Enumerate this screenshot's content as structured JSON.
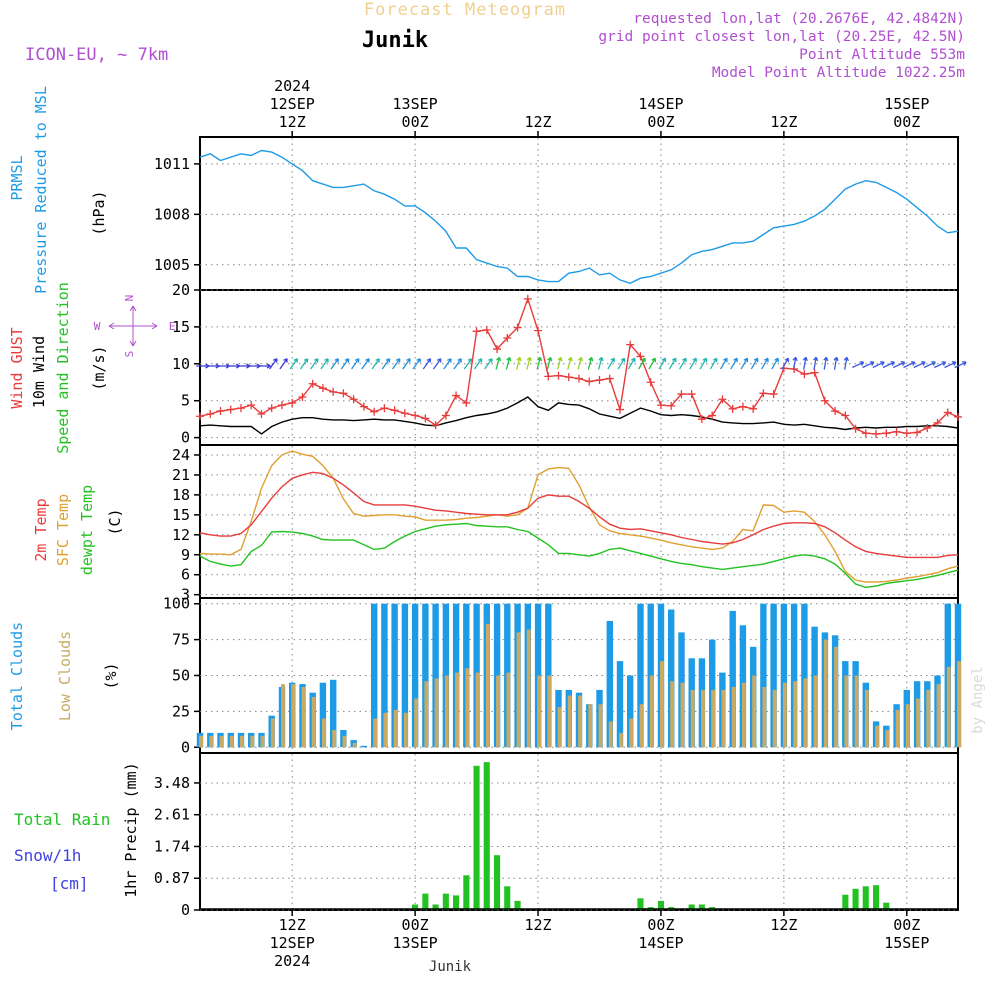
{
  "header": {
    "top_title": "Forecast Meteogram",
    "location": "Junik",
    "model": "ICON-EU, ~ 7km",
    "requested": "requested lon,lat (20.2676E, 42.4842N)",
    "grid_point": "grid point closest lon,lat (20.25E, 42.5N)",
    "point_altitude": "Point Altitude 553m",
    "model_altitude": "Model Point Altitude 1022.25m",
    "footer_location": "Junik",
    "watermark": "by Angel"
  },
  "colors": {
    "prmsl": "#1e9be6",
    "gust": "#e83c3c",
    "wind10": "#000000",
    "t2m": "#e83c3c",
    "sfc": "#e0a030",
    "dewpt": "#22c222",
    "total_clouds": "#1e9be6",
    "low_clouds": "#c8aa64",
    "rain": "#22c222",
    "snow": "#4040e0",
    "model": "#b04fd0"
  },
  "time_axis": {
    "start": "2024-09-12T03Z",
    "end": "2024-09-15T06Z",
    "step_hours": 1,
    "top_ticks": [
      {
        "hour": 9,
        "lines": [
          "2024",
          "12SEP",
          "12Z"
        ]
      },
      {
        "hour": 21,
        "lines": [
          "13SEP",
          "00Z"
        ]
      },
      {
        "hour": 33,
        "lines": [
          "12Z"
        ]
      },
      {
        "hour": 45,
        "lines": [
          "14SEP",
          "00Z"
        ]
      },
      {
        "hour": 57,
        "lines": [
          "12Z"
        ]
      },
      {
        "hour": 69,
        "lines": [
          "15SEP",
          "00Z"
        ]
      }
    ],
    "bottom_ticks": [
      {
        "hour": 9,
        "lines": [
          "12Z",
          "12SEP",
          "2024"
        ]
      },
      {
        "hour": 21,
        "lines": [
          "00Z",
          "13SEP"
        ]
      },
      {
        "hour": 33,
        "lines": [
          "12Z"
        ]
      },
      {
        "hour": 45,
        "lines": [
          "00Z",
          "14SEP"
        ]
      },
      {
        "hour": 57,
        "lines": [
          "12Z"
        ]
      },
      {
        "hour": 69,
        "lines": [
          "00Z",
          "15SEP"
        ]
      }
    ]
  },
  "chart_data": [
    {
      "type": "line",
      "panel": "pressure",
      "ylabel": [
        "PRMSL",
        "Pressure Reduced to MSL"
      ],
      "unit": "(hPa)",
      "yticks": [
        1005,
        1008,
        1011
      ],
      "ylim": [
        1003.5,
        1012.6
      ],
      "series": [
        {
          "name": "PRMSL",
          "values": [
            1011.4,
            1011.6,
            1011.2,
            1011.4,
            1011.6,
            1011.5,
            1011.8,
            1011.7,
            1011.4,
            1011.0,
            1010.6,
            1010.0,
            1009.8,
            1009.6,
            1009.6,
            1009.7,
            1009.8,
            1009.4,
            1009.2,
            1008.9,
            1008.5,
            1008.5,
            1008.1,
            1007.6,
            1007.0,
            1006.0,
            1006.0,
            1005.3,
            1005.1,
            1004.9,
            1004.8,
            1004.3,
            1004.3,
            1004.1,
            1004.0,
            1004.0,
            1004.5,
            1004.6,
            1004.8,
            1004.4,
            1004.5,
            1004.1,
            1003.9,
            1004.2,
            1004.3,
            1004.5,
            1004.7,
            1005.1,
            1005.6,
            1005.8,
            1005.9,
            1006.1,
            1006.3,
            1006.3,
            1006.4,
            1006.8,
            1007.2,
            1007.3,
            1007.4,
            1007.6,
            1007.9,
            1008.3,
            1008.9,
            1009.5,
            1009.8,
            1010.0,
            1009.9,
            1009.6,
            1009.3,
            1008.9,
            1008.4,
            1007.9,
            1007.3,
            1006.9,
            1007.0
          ]
        }
      ]
    },
    {
      "type": "line",
      "panel": "wind",
      "ylabel": [
        "Wind GUST",
        "10m Wind",
        "Speed and Direction"
      ],
      "unit": "(m/s)",
      "compass": {
        "n": "N",
        "e": "E",
        "s": "S",
        "w": "W"
      },
      "yticks": [
        0,
        5,
        10,
        15,
        20
      ],
      "ylim": [
        -1,
        20
      ],
      "arrow_level": 9.7,
      "series": [
        {
          "name": "Wind GUST",
          "values": [
            2.9,
            3.2,
            3.6,
            3.8,
            4.0,
            4.4,
            3.2,
            4.0,
            4.4,
            4.7,
            5.5,
            7.3,
            6.7,
            6.2,
            6.0,
            5.2,
            4.2,
            3.5,
            4.0,
            3.7,
            3.3,
            3.0,
            2.6,
            1.7,
            3.0,
            5.7,
            4.7,
            14.4,
            14.6,
            12.0,
            13.5,
            14.9,
            18.8,
            14.5,
            8.3,
            8.4,
            8.2,
            8.0,
            7.6,
            7.8,
            8.0,
            3.8,
            12.6,
            11.0,
            7.5,
            4.4,
            4.3,
            5.9,
            5.9,
            2.5,
            3.0,
            5.2,
            3.9,
            4.2,
            3.9,
            6.0,
            5.9,
            9.4,
            9.3,
            8.6,
            8.8,
            5.0,
            3.6,
            3.0,
            1.2,
            0.6,
            0.5,
            0.6,
            0.8,
            0.6,
            0.7,
            1.3,
            2.0,
            3.4,
            2.8
          ]
        },
        {
          "name": "10m Wind",
          "values": [
            1.6,
            1.7,
            1.6,
            1.5,
            1.5,
            1.5,
            0.5,
            1.5,
            2.1,
            2.5,
            2.7,
            2.7,
            2.5,
            2.4,
            2.4,
            2.3,
            2.4,
            2.5,
            2.4,
            2.4,
            2.2,
            2.0,
            1.7,
            1.6,
            2.0,
            2.3,
            2.7,
            3.0,
            3.2,
            3.5,
            4.0,
            4.7,
            5.5,
            4.2,
            3.7,
            4.7,
            4.5,
            4.4,
            3.9,
            3.2,
            2.9,
            2.6,
            3.3,
            4.0,
            3.6,
            3.1,
            3.0,
            3.1,
            3.0,
            2.8,
            2.5,
            2.1,
            2.0,
            1.9,
            1.9,
            2.0,
            2.1,
            1.8,
            1.7,
            1.8,
            1.6,
            1.4,
            1.3,
            1.1,
            1.3,
            1.4,
            1.3,
            1.4,
            1.4,
            1.5,
            1.5,
            1.6,
            1.6,
            1.5,
            1.3
          ]
        }
      ]
    },
    {
      "type": "line",
      "panel": "temperature",
      "ylabel": [
        "2m Temp",
        "SFC Temp",
        "dewpt Temp"
      ],
      "unit": "(C)",
      "yticks": [
        3,
        6,
        9,
        12,
        15,
        18,
        21,
        24
      ],
      "ylim": [
        2.5,
        25.5
      ],
      "series": [
        {
          "name": "2m Temp",
          "values": [
            12.3,
            12.0,
            11.8,
            11.8,
            12.2,
            13.5,
            15.5,
            17.5,
            19.2,
            20.5,
            21.0,
            21.4,
            21.2,
            20.5,
            19.5,
            18.3,
            17.0,
            16.5,
            16.5,
            16.5,
            16.5,
            16.3,
            16.0,
            15.7,
            15.6,
            15.4,
            15.2,
            15.1,
            15.0,
            15.0,
            15.0,
            15.4,
            16.0,
            17.5,
            18.0,
            17.8,
            17.8,
            17.0,
            16.0,
            14.7,
            13.6,
            13.0,
            12.8,
            12.9,
            12.6,
            12.3,
            12.0,
            11.6,
            11.3,
            11.0,
            10.8,
            10.6,
            10.8,
            11.3,
            12.0,
            12.8,
            13.3,
            13.7,
            13.8,
            13.8,
            13.7,
            13.2,
            12.3,
            11.2,
            10.2,
            9.5,
            9.2,
            9.0,
            8.8,
            8.6,
            8.6,
            8.6,
            8.6,
            8.9,
            9.0
          ]
        },
        {
          "name": "SFC Temp",
          "values": [
            9.2,
            9.1,
            9.1,
            9.0,
            9.8,
            14.0,
            19.0,
            22.4,
            24.0,
            24.6,
            24.1,
            23.8,
            22.4,
            20.5,
            17.4,
            15.2,
            14.8,
            14.9,
            15.0,
            15.0,
            14.8,
            14.7,
            14.2,
            14.2,
            14.2,
            14.3,
            14.5,
            14.6,
            14.8,
            15.0,
            14.8,
            15.0,
            16.0,
            21.0,
            21.9,
            22.1,
            22.0,
            19.5,
            16.2,
            13.5,
            12.6,
            12.2,
            12.0,
            11.8,
            11.5,
            11.2,
            10.8,
            10.5,
            10.2,
            10.0,
            9.8,
            10.0,
            11.0,
            12.8,
            12.6,
            16.5,
            16.4,
            15.4,
            15.6,
            15.4,
            14.0,
            12.0,
            9.5,
            6.5,
            5.2,
            4.9,
            4.9,
            5.0,
            5.2,
            5.5,
            5.7,
            6.0,
            6.3,
            6.9,
            7.3
          ]
        },
        {
          "name": "dewpt Temp",
          "values": [
            8.8,
            8.0,
            7.6,
            7.3,
            7.5,
            9.5,
            10.4,
            12.4,
            12.5,
            12.4,
            12.2,
            11.8,
            11.3,
            11.2,
            11.2,
            11.2,
            10.5,
            9.8,
            10.0,
            11.0,
            11.8,
            12.5,
            12.9,
            13.3,
            13.5,
            13.6,
            13.7,
            13.4,
            13.3,
            13.2,
            13.2,
            12.8,
            12.5,
            11.5,
            10.5,
            9.2,
            9.2,
            9.0,
            8.8,
            9.2,
            9.8,
            10.0,
            9.6,
            9.2,
            8.8,
            8.4,
            8.0,
            7.7,
            7.5,
            7.2,
            7.0,
            6.8,
            7.0,
            7.2,
            7.4,
            7.6,
            8.0,
            8.4,
            8.8,
            9.0,
            8.8,
            8.4,
            7.6,
            6.2,
            4.6,
            4.1,
            4.3,
            4.7,
            4.9,
            5.1,
            5.3,
            5.6,
            5.9,
            6.3,
            6.7
          ]
        }
      ]
    },
    {
      "type": "bar",
      "panel": "clouds",
      "ylabel": [
        "Total Clouds",
        "Low Clouds"
      ],
      "unit": "(%)",
      "yticks": [
        0,
        25,
        50,
        75,
        100
      ],
      "ylim": [
        -4,
        104
      ],
      "series": [
        {
          "name": "Total Clouds",
          "values": [
            10,
            10,
            10,
            10,
            10,
            10,
            10,
            22,
            42,
            45,
            44,
            38,
            45,
            47,
            12,
            5,
            0,
            100,
            100,
            100,
            100,
            100,
            100,
            100,
            100,
            100,
            100,
            100,
            100,
            100,
            100,
            100,
            100,
            100,
            100,
            40,
            40,
            38,
            30,
            40,
            88,
            60,
            50,
            100,
            100,
            100,
            96,
            80,
            62,
            62,
            75,
            52,
            95,
            85,
            70,
            100,
            100,
            100,
            100,
            100,
            84,
            80,
            78,
            60,
            60,
            45,
            18,
            15,
            30,
            40,
            46,
            46,
            50,
            100,
            100
          ]
        },
        {
          "name": "Low Clouds",
          "values": [
            8,
            8,
            8,
            8,
            8,
            8,
            8,
            20,
            44,
            44,
            42,
            35,
            20,
            12,
            8,
            3,
            0,
            20,
            24,
            26,
            24,
            34,
            46,
            48,
            50,
            52,
            55,
            52,
            86,
            50,
            52,
            80,
            82,
            50,
            50,
            28,
            36,
            36,
            30,
            30,
            18,
            10,
            20,
            30,
            50,
            60,
            46,
            45,
            40,
            40,
            40,
            40,
            42,
            45,
            50,
            42,
            40,
            45,
            46,
            48,
            50,
            75,
            70,
            50,
            50,
            40,
            15,
            12,
            26,
            30,
            34,
            40,
            44,
            56,
            60
          ]
        }
      ]
    },
    {
      "type": "bar",
      "panel": "precip",
      "ylabel": [
        "Total Rain",
        "Snow/1h",
        "[cm]"
      ],
      "unit": "1hr Precip (mm)",
      "yticks": [
        0,
        0.87,
        1.74,
        2.61,
        3.48
      ],
      "ylim": [
        0,
        4.3
      ],
      "series": [
        {
          "name": "Total Rain",
          "values": [
            0,
            0,
            0,
            0,
            0,
            0,
            0,
            0,
            0,
            0,
            0,
            0,
            0,
            0,
            0,
            0,
            0,
            0,
            0,
            0,
            0,
            0.15,
            0.45,
            0.15,
            0.45,
            0.4,
            0.95,
            3.95,
            4.05,
            1.5,
            0.65,
            0.25,
            0,
            0,
            0,
            0,
            0,
            0,
            0,
            0,
            0,
            0,
            0,
            0.32,
            0.08,
            0.25,
            0.08,
            0,
            0.15,
            0.15,
            0.08,
            0,
            0,
            0,
            0,
            0,
            0,
            0,
            0,
            0,
            0,
            0,
            0,
            0.42,
            0.58,
            0.65,
            0.68,
            0.2,
            0,
            0,
            0,
            0,
            0,
            0,
            0
          ]
        }
      ]
    }
  ]
}
